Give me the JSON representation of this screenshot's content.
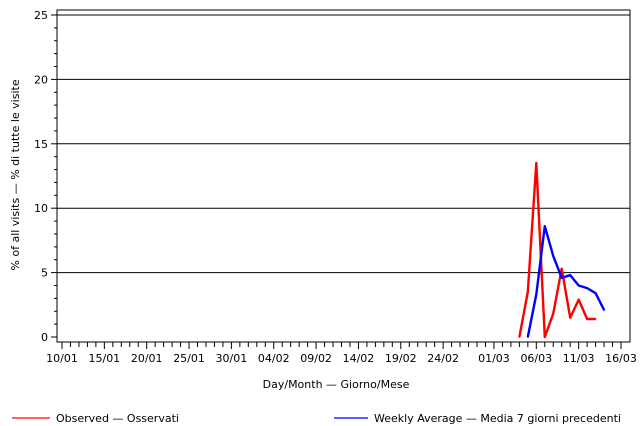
{
  "chart_data": {
    "type": "line",
    "title": "",
    "xlabel": "Day/Month — Giorno/Mese",
    "ylabel": "% of all visits — % di tutte le visite",
    "ylim": [
      0,
      25
    ],
    "yticks": [
      0,
      5,
      10,
      15,
      20,
      25
    ],
    "grid": "horizontal",
    "legend_position": "bottom",
    "xlim": [
      "2020-01-10",
      "2020-03-16"
    ],
    "xtick_labels": [
      {
        "date": "2020-01-10",
        "label": "10/01"
      },
      {
        "date": "2020-01-15",
        "label": "15/01"
      },
      {
        "date": "2020-01-20",
        "label": "20/01"
      },
      {
        "date": "2020-01-25",
        "label": "25/01"
      },
      {
        "date": "2020-01-30",
        "label": "30/01"
      },
      {
        "date": "2020-02-04",
        "label": "04/02"
      },
      {
        "date": "2020-02-09",
        "label": "09/02"
      },
      {
        "date": "2020-02-14",
        "label": "14/02"
      },
      {
        "date": "2020-02-19",
        "label": "19/02"
      },
      {
        "date": "2020-02-24",
        "label": "24/02"
      },
      {
        "date": "2020-03-01",
        "label": "01/03"
      },
      {
        "date": "2020-03-06",
        "label": "06/03"
      },
      {
        "date": "2020-03-11",
        "label": "11/03"
      },
      {
        "date": "2020-03-16",
        "label": "16/03"
      }
    ],
    "series": [
      {
        "name": "Observed — Osservati",
        "color": "#ff0000",
        "points": [
          {
            "x": "2020-03-04",
            "y": 0.0
          },
          {
            "x": "2020-03-05",
            "y": 3.5
          },
          {
            "x": "2020-03-06",
            "y": 13.5
          },
          {
            "x": "2020-03-07",
            "y": 0.0
          },
          {
            "x": "2020-03-08",
            "y": 1.8
          },
          {
            "x": "2020-03-09",
            "y": 5.3
          },
          {
            "x": "2020-03-10",
            "y": 1.5
          },
          {
            "x": "2020-03-11",
            "y": 2.9
          },
          {
            "x": "2020-03-12",
            "y": 1.4
          },
          {
            "x": "2020-03-13",
            "y": 1.4
          }
        ]
      },
      {
        "name": "Weekly Average — Media 7 giorni precedenti",
        "color": "#0000ff",
        "points": [
          {
            "x": "2020-03-05",
            "y": 0.0
          },
          {
            "x": "2020-03-06",
            "y": 3.3
          },
          {
            "x": "2020-03-07",
            "y": 8.6
          },
          {
            "x": "2020-03-08",
            "y": 6.3
          },
          {
            "x": "2020-03-09",
            "y": 4.6
          },
          {
            "x": "2020-03-10",
            "y": 4.8
          },
          {
            "x": "2020-03-11",
            "y": 4.0
          },
          {
            "x": "2020-03-12",
            "y": 3.8
          },
          {
            "x": "2020-03-13",
            "y": 3.4
          },
          {
            "x": "2020-03-14",
            "y": 2.1
          }
        ]
      }
    ]
  }
}
